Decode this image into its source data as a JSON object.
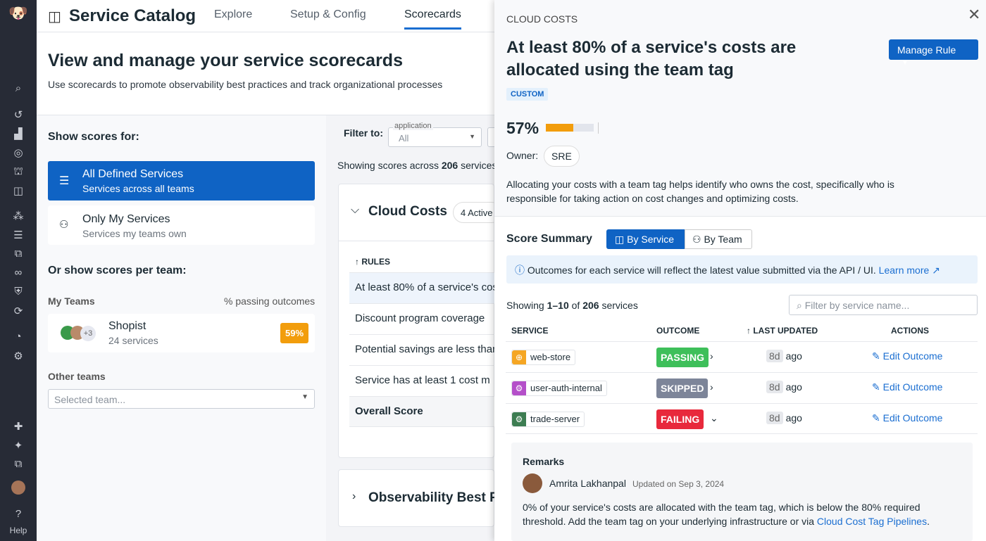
{
  "nav": {
    "icons": [
      "dog-logo-icon",
      "search-icon",
      "history-icon",
      "chart-icon",
      "target-icon",
      "binoculars-icon",
      "catalog-icon",
      "graph-icon",
      "logs-icon",
      "apm-icon",
      "link-icon",
      "security-icon",
      "refresh-icon",
      "gauge-icon",
      "monitor-icon",
      "integrations-icon",
      "sparkle-icon",
      "window-icon",
      "user-avatar-icon",
      "help-icon"
    ],
    "help": "Help"
  },
  "header": {
    "title": "Service Catalog",
    "tabs": [
      "Explore",
      "Setup & Config",
      "Scorecards"
    ],
    "active_tab": "Scorecards"
  },
  "hero": {
    "title": "View and manage your service scorecards",
    "subtitle": "Use scorecards to promote observability best practices and track organizational processes"
  },
  "left": {
    "show_scores": "Show scores for:",
    "options": [
      {
        "title": "All Defined Services",
        "sub": "Services across all teams"
      },
      {
        "title": "Only My Services",
        "sub": "Services my teams own"
      }
    ],
    "per_team": "Or show scores per team:",
    "my_teams": "My Teams",
    "passing": "% passing outcomes",
    "team": {
      "name": "Shopist",
      "services": "24 services",
      "extra": "+3",
      "score": "59%"
    },
    "other_teams": "Other teams",
    "team_placeholder": "Selected team..."
  },
  "mid": {
    "filter_label": "Filter to:",
    "filter_field": "application",
    "filter_value": "All",
    "showing_pre": "Showing scores across ",
    "showing_count": "206",
    "showing_post": " services",
    "scorecard": "Cloud Costs",
    "active": "4 Active",
    "rules_header": "RULES",
    "rules": [
      "At least 80% of a service's costs are allocated using the team tag",
      "Discount program coverage",
      "Potential savings are less than",
      "Service has at least 1 cost m"
    ],
    "overall": "Overall Score",
    "scorecard2": "Observability Best Practices"
  },
  "drawer": {
    "eyebrow": "CLOUD COSTS",
    "title": "At least 80% of a service's costs are allocated using the team tag",
    "manage": "Manage Rule",
    "tag": "CUSTOM",
    "owner_label": "Owner:",
    "owner": "SRE",
    "description": "Allocating your costs with a team tag helps identify who owns the cost, specifically who is responsible for taking action on cost changes and optimizing costs.",
    "summary": "Score Summary",
    "toggle": [
      "By Service",
      "By Team"
    ],
    "info": "Outcomes for each service will reflect the latest value submitted via the API / UI.",
    "learn_more": "Learn more",
    "showing_pre": "Showing ",
    "showing_range": "1–10",
    "showing_mid": " of ",
    "showing_total": "206",
    "showing_post": " services",
    "filter_placeholder": "Filter by service name...",
    "columns": [
      "SERVICE",
      "OUTCOME",
      "LAST UPDATED",
      "ACTIONS"
    ],
    "rows": [
      {
        "service": "web-store",
        "outcome": "PASSING",
        "color": "#3ebf5a",
        "icon_color": "#f5a623",
        "age": "8d",
        "ago": "ago",
        "action": "Edit Outcome"
      },
      {
        "service": "user-auth-internal",
        "outcome": "SKIPPED",
        "color": "#7d8599",
        "icon_color": "#b44fc9",
        "age": "8d",
        "ago": "ago",
        "action": "Edit Outcome"
      },
      {
        "service": "trade-server",
        "outcome": "FAILING",
        "color": "#e8293c",
        "icon_color": "#3d7d52",
        "age": "8d",
        "ago": "ago",
        "action": "Edit Outcome"
      }
    ],
    "remarks": {
      "title": "Remarks",
      "author": "Amrita Lakhanpal",
      "updated": "Updated on Sep 3, 2024",
      "text": "0% of your service's costs are allocated with the team tag, which is below the 80% required threshold. Add the team tag on your underlying infrastructure or via ",
      "link": "Cloud Cost Tag Pipelines",
      "end": "."
    }
  },
  "score": {
    "label": "57%",
    "percent": 57,
    "color": "#f29d0c"
  },
  "colors": {
    "accent": "#0f63c4"
  }
}
